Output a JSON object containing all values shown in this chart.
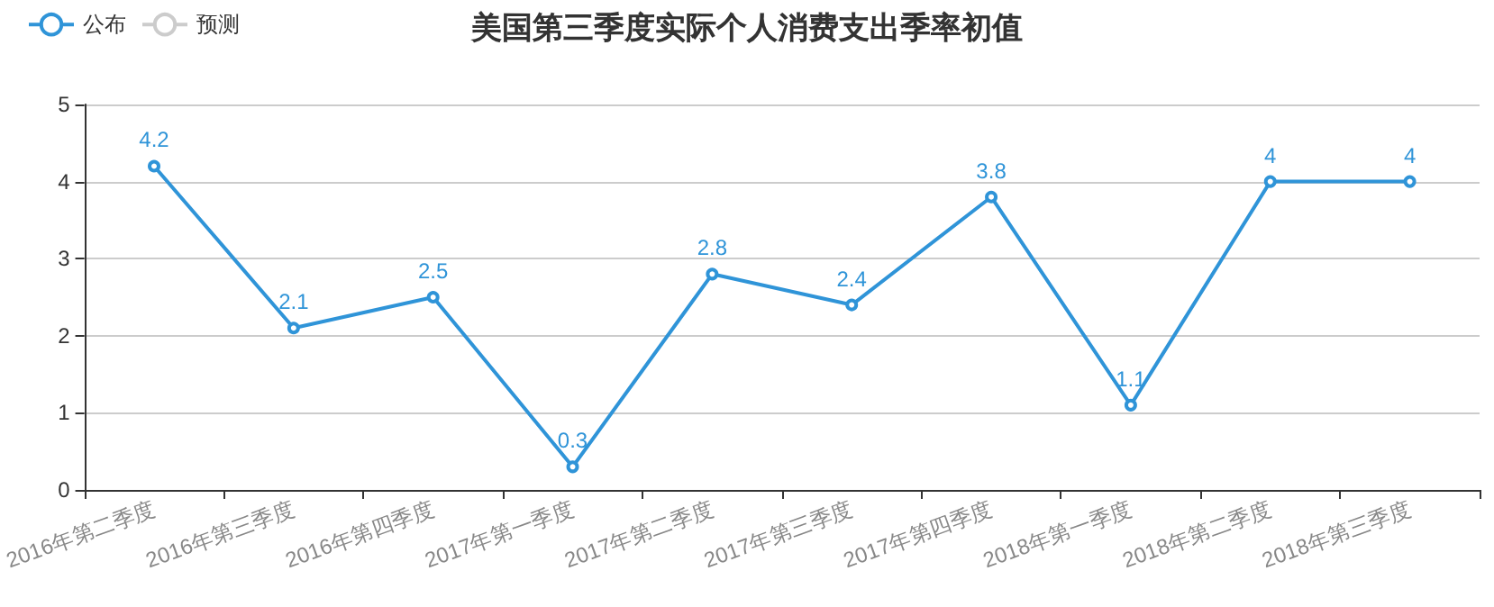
{
  "chart_data": {
    "type": "line",
    "title": "美国第三季度实际个人消费支出季率初值",
    "categories": [
      "2016年第二季度",
      "2016年第三季度",
      "2016年第四季度",
      "2017年第一季度",
      "2017年第二季度",
      "2017年第三季度",
      "2017年第四季度",
      "2018年第一季度",
      "2018年第二季度",
      "2018年第三季度"
    ],
    "series": [
      {
        "name": "公布",
        "color": "#2f94d8",
        "values": [
          4.2,
          2.1,
          2.5,
          0.3,
          2.8,
          2.4,
          3.8,
          1.1,
          4,
          4
        ]
      },
      {
        "name": "预测",
        "color": "#cccccc",
        "values": [
          null,
          null,
          null,
          null,
          null,
          null,
          null,
          null,
          null,
          null
        ]
      }
    ],
    "ylim": [
      0,
      5
    ],
    "yticks": [
      0,
      1,
      2,
      3,
      4,
      5
    ],
    "grid": "y",
    "legend": "top left",
    "marker": "circle",
    "line_style": "solid",
    "data_labels": true
  }
}
